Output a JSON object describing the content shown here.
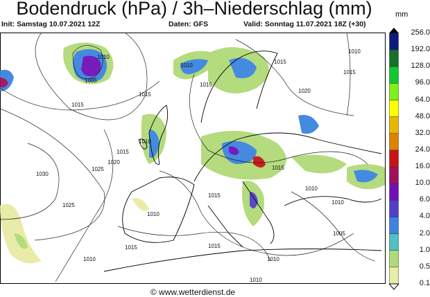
{
  "title": "Bodendruck (hPa) / 3h–Niederschlag (mm)",
  "header": {
    "init": "Init: Samstag 10.07.2021 12Z",
    "source": "Daten: GFS",
    "valid": "Valid: Sonntag 11.07.2021 18Z (+30)"
  },
  "footer": "© www.wetterdienst.de",
  "legend": {
    "unit": "mm",
    "labels": [
      "256.0",
      "192.0",
      "128.0",
      "96.0",
      "64.0",
      "48.0",
      "32.0",
      "24.0",
      "16.0",
      "10.0",
      "6.0",
      "4.0",
      "2.0",
      "1.0",
      "0.5",
      "0.1"
    ],
    "colors": [
      "#0c1a7a",
      "#16702c",
      "#10c830",
      "#80f018",
      "#ffff00",
      "#e8b800",
      "#dc8400",
      "#c81414",
      "#a0105c",
      "#7010b8",
      "#5040c8",
      "#3c84e0",
      "#50c0c0",
      "#b0da78",
      "#e8eca4"
    ]
  },
  "isobar_labels": [
    "1010",
    "1005",
    "1015",
    "1015",
    "1030",
    "1025",
    "1025",
    "1020",
    "1015",
    "1010",
    "1015",
    "1015",
    "1020",
    "1015",
    "1010",
    "1010",
    "1015",
    "1010",
    "1005",
    "1015",
    "1010",
    "1010",
    "1015",
    "1010",
    "1015",
    "1010",
    "1010"
  ]
}
